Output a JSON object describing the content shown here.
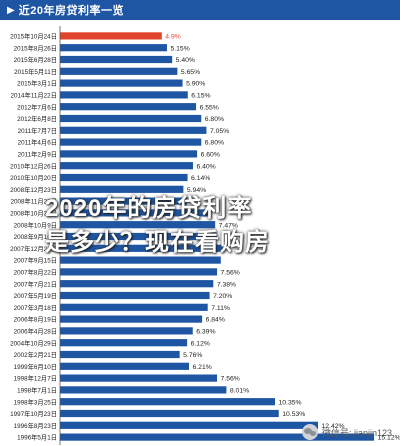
{
  "header": {
    "arrow": "▶",
    "title": "近20年房贷利率一览"
  },
  "overlay": {
    "line1": "2020年的房贷利率",
    "line2": "是多少？现在看购房"
  },
  "watermark": {
    "text": "微信号: jianjin123"
  },
  "colors": {
    "header_bg": "#1f56a3",
    "bar": "#1f56a3",
    "bar_highlight": "#e0452b",
    "axis": "#555555",
    "label": "#222222"
  },
  "chart_data": {
    "type": "bar",
    "orientation": "horizontal",
    "categories": [
      "2015年10月24日",
      "2015年8月26日",
      "2015年6月28日",
      "2015年5月11日",
      "2015年3月1日",
      "2014年11月22日",
      "2012年7月6日",
      "2012年6月8日",
      "2011年7月7日",
      "2011年4月6日",
      "2011年2月9日",
      "2010年12月26日",
      "2010年10月20日",
      "2008年12月23日",
      "2008年11月27日",
      "2008年10月30日",
      "2008年10月9日",
      "2008年9月16日",
      "2007年12月21日",
      "2007年9月15日",
      "2007年8月22日",
      "2007年7月21日",
      "2007年5月19日",
      "2007年3月18日",
      "2006年8月19日",
      "2006年4月28日",
      "2004年10月29日",
      "2002年2月21日",
      "1999年6月10日",
      "1998年12月7日",
      "1998年7月1日",
      "1998年3月25日",
      "1997年10月23日",
      "1996年8月23日",
      "1996年5月1日"
    ],
    "values": [
      4.9,
      5.15,
      5.4,
      5.65,
      5.9,
      6.15,
      6.55,
      6.8,
      7.05,
      6.8,
      6.6,
      6.4,
      6.14,
      5.94,
      6.12,
      7.2,
      7.47,
      7.56,
      7.83,
      7.74,
      7.56,
      7.38,
      7.2,
      7.11,
      6.84,
      6.39,
      6.12,
      5.76,
      6.21,
      7.56,
      8.01,
      10.35,
      10.53,
      12.42,
      15.12
    ],
    "value_labels": [
      "4.9%",
      "5.15%",
      "5.40%",
      "5.65%",
      "5.90%",
      "6.15%",
      "6.55%",
      "6.80%",
      "7.05%",
      "6.80%",
      "6.60%",
      "6.40%",
      "6.14%",
      "5.94%",
      "",
      "",
      "7.47%",
      "",
      "",
      "",
      "7.56%",
      "7.38%",
      "7.20%",
      "7.11%",
      "6.84%",
      "6.39%",
      "6.12%",
      "5.76%",
      "6.21%",
      "7.56%",
      "8.01%",
      "10.35%",
      "10.53%",
      "12.42%",
      "15.12%"
    ],
    "highlight_index": 0,
    "xlim": [
      0,
      15.5
    ],
    "title": "近20年房贷利率一览"
  }
}
